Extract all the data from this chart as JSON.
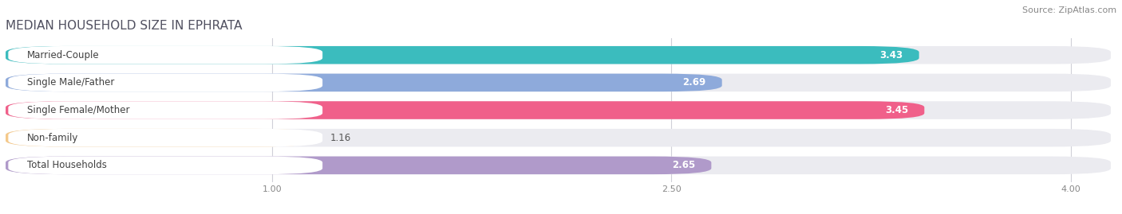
{
  "title": "MEDIAN HOUSEHOLD SIZE IN EPHRATA",
  "source": "Source: ZipAtlas.com",
  "categories": [
    "Married-Couple",
    "Single Male/Father",
    "Single Female/Mother",
    "Non-family",
    "Total Households"
  ],
  "values": [
    3.43,
    2.69,
    3.45,
    1.16,
    2.65
  ],
  "bar_colors": [
    "#3bbcbe",
    "#8eaadb",
    "#f0608a",
    "#f5c98a",
    "#b09aca"
  ],
  "xlim_left": 0.0,
  "xlim_right": 4.15,
  "xticks": [
    1.0,
    2.5,
    4.0
  ],
  "xtick_labels": [
    "1.00",
    "2.50",
    "4.00"
  ],
  "background_color": "#ffffff",
  "bar_bg_color": "#ebebf0",
  "row_bg_color": "#f5f5f8",
  "title_fontsize": 11,
  "source_fontsize": 8,
  "label_fontsize": 8.5,
  "value_fontsize": 8.5
}
